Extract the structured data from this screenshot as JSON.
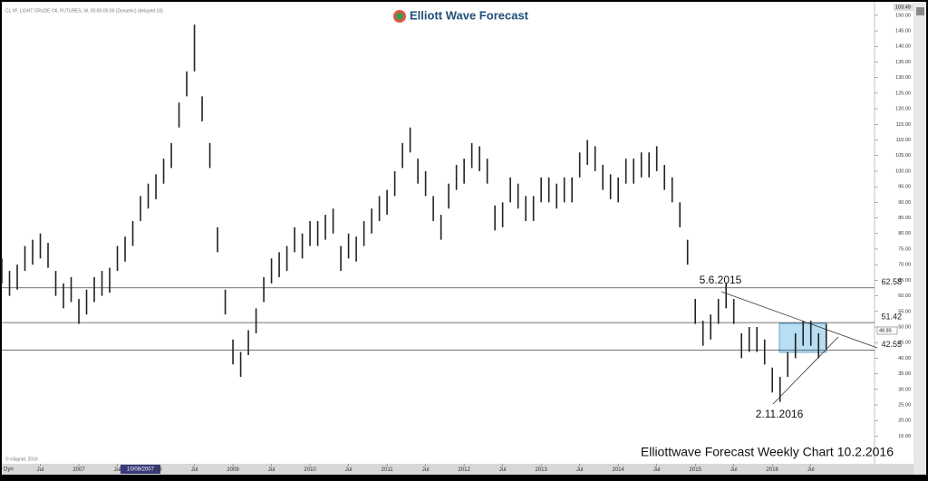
{
  "chart_data": {
    "type": "bar-range",
    "header": "CL #F, LIGHT CRUDE OIL FUTURES, W, 00:00-00:00 (Dynamic) (delayed 10)",
    "brand": "Elliott Wave Forecast",
    "footer_title": "Elliottwave Forecast Weekly Chart 10.2.2016",
    "copyright": "© eSignal, 2016",
    "corner_label": "Dyn",
    "cursor_date": "10/08/2007",
    "top_price": 103.49,
    "last_price": 48.85,
    "annotations": [
      "5.6.2015",
      "2.11.2016"
    ],
    "levels": [
      62.58,
      51.42,
      42.55
    ],
    "color": "#222222",
    "x": [
      2006.0,
      2006.1,
      2006.2,
      2006.3,
      2006.4,
      2006.5,
      2006.6,
      2006.7,
      2006.8,
      2006.9,
      2007.0,
      2007.1,
      2007.2,
      2007.3,
      2007.4,
      2007.5,
      2007.6,
      2007.7,
      2007.8,
      2007.9,
      2008.0,
      2008.1,
      2008.2,
      2008.3,
      2008.4,
      2008.5,
      2008.6,
      2008.7,
      2008.8,
      2008.9,
      2009.0,
      2009.1,
      2009.2,
      2009.3,
      2009.4,
      2009.5,
      2009.6,
      2009.7,
      2009.8,
      2009.9,
      2010.0,
      2010.1,
      2010.2,
      2010.3,
      2010.4,
      2010.5,
      2010.6,
      2010.7,
      2010.8,
      2010.9,
      2011.0,
      2011.1,
      2011.2,
      2011.3,
      2011.4,
      2011.5,
      2011.6,
      2011.7,
      2011.8,
      2011.9,
      2012.0,
      2012.1,
      2012.2,
      2012.3,
      2012.4,
      2012.5,
      2012.6,
      2012.7,
      2012.8,
      2012.9,
      2013.0,
      2013.1,
      2013.2,
      2013.3,
      2013.4,
      2013.5,
      2013.6,
      2013.7,
      2013.8,
      2013.9,
      2014.0,
      2014.1,
      2014.2,
      2014.3,
      2014.4,
      2014.5,
      2014.6,
      2014.7,
      2014.8,
      2014.9,
      2015.0,
      2015.1,
      2015.2,
      2015.3,
      2015.4,
      2015.5,
      2015.6,
      2015.7,
      2015.8,
      2015.9,
      2016.0,
      2016.1,
      2016.2,
      2016.3,
      2016.4,
      2016.5,
      2016.6,
      2016.7
    ],
    "high": [
      72,
      68,
      70,
      76,
      78,
      80,
      77,
      68,
      64,
      66,
      59,
      62,
      66,
      68,
      69,
      76,
      79,
      84,
      92,
      96,
      99,
      104,
      109,
      122,
      132,
      147,
      124,
      109,
      82,
      62,
      46,
      42,
      49,
      56,
      66,
      72,
      74,
      76,
      82,
      80,
      84,
      84,
      86,
      88,
      76,
      80,
      79,
      84,
      88,
      92,
      94,
      100,
      109,
      114,
      104,
      100,
      92,
      86,
      96,
      102,
      104,
      109,
      108,
      104,
      89,
      90,
      98,
      96,
      92,
      92,
      98,
      98,
      96,
      98,
      98,
      106,
      110,
      108,
      102,
      99,
      98,
      104,
      104,
      106,
      106,
      108,
      102,
      98,
      90,
      78,
      59,
      52,
      54,
      59,
      64,
      59,
      48,
      50,
      50,
      46,
      37,
      34,
      42,
      48,
      52,
      52,
      48,
      51
    ],
    "low": [
      64,
      60,
      62,
      68,
      70,
      72,
      69,
      60,
      56,
      58,
      51,
      54,
      58,
      60,
      61,
      68,
      71,
      76,
      84,
      88,
      91,
      96,
      101,
      114,
      124,
      132,
      116,
      101,
      74,
      54,
      38,
      34,
      41,
      48,
      58,
      64,
      66,
      68,
      74,
      72,
      76,
      76,
      78,
      80,
      68,
      72,
      71,
      76,
      80,
      84,
      86,
      92,
      101,
      106,
      96,
      92,
      84,
      78,
      88,
      94,
      96,
      101,
      100,
      96,
      81,
      82,
      90,
      88,
      84,
      84,
      90,
      90,
      88,
      90,
      90,
      98,
      102,
      100,
      94,
      91,
      90,
      96,
      96,
      98,
      98,
      100,
      94,
      90,
      82,
      70,
      51,
      44,
      46,
      51,
      56,
      51,
      40,
      42,
      42,
      38,
      29,
      26,
      34,
      40,
      44,
      44,
      40,
      43
    ],
    "xlim": [
      2006,
      2017.35
    ],
    "xticks": [
      {
        "value": 2006.5,
        "label": "Jul"
      },
      2007,
      {
        "value": 2007.5,
        "label": "Jul"
      },
      2008,
      {
        "value": 2008.5,
        "label": "Jul"
      },
      2009,
      {
        "value": 2009.5,
        "label": "Jul"
      },
      2010,
      {
        "value": 2010.5,
        "label": "Jul"
      },
      2011,
      {
        "value": 2011.5,
        "label": "Jul"
      },
      2012,
      {
        "value": 2012.5,
        "label": "Jul"
      },
      2013,
      {
        "value": 2013.5,
        "label": "Jul"
      },
      2014,
      {
        "value": 2014.5,
        "label": "Jul"
      },
      2015,
      {
        "value": 2015.5,
        "label": "Jul"
      },
      2016,
      {
        "value": 2016.5,
        "label": "Jul"
      }
    ],
    "ylim": [
      7,
      152
    ],
    "yticks": [
      {
        "value": 15,
        "label": "15.00"
      },
      {
        "value": 20,
        "label": "20.00"
      },
      {
        "value": 25,
        "label": "25.00"
      },
      {
        "value": 30,
        "label": "30.00"
      },
      {
        "value": 35,
        "label": "35.00"
      },
      {
        "value": 40,
        "label": "40.00"
      },
      {
        "value": 45,
        "label": "45.00"
      },
      {
        "value": 50,
        "label": "50.00"
      },
      {
        "value": 55,
        "label": "55.00"
      },
      {
        "value": 60,
        "label": "60.00"
      },
      {
        "value": 65,
        "label": "65.00"
      },
      {
        "value": 70,
        "label": "70.00"
      },
      {
        "value": 75,
        "label": "75.00"
      },
      {
        "value": 80,
        "label": "80.00"
      },
      {
        "value": 85,
        "label": "85.00"
      },
      {
        "value": 90,
        "label": "90.00"
      },
      {
        "value": 95,
        "label": "95.00"
      },
      {
        "value": 100,
        "label": "100.00"
      },
      {
        "value": 105,
        "label": "105.00"
      },
      {
        "value": 110,
        "label": "110.00"
      },
      {
        "value": 115,
        "label": "115.00"
      },
      {
        "value": 120,
        "label": "120.00"
      },
      {
        "value": 125,
        "label": "125.00"
      },
      {
        "value": 130,
        "label": "130.00"
      },
      {
        "value": 135,
        "label": "135.00"
      },
      {
        "value": 140,
        "label": "140.00"
      },
      {
        "value": 145,
        "label": "145.00"
      },
      {
        "value": 150,
        "label": "150.00"
      }
    ]
  }
}
